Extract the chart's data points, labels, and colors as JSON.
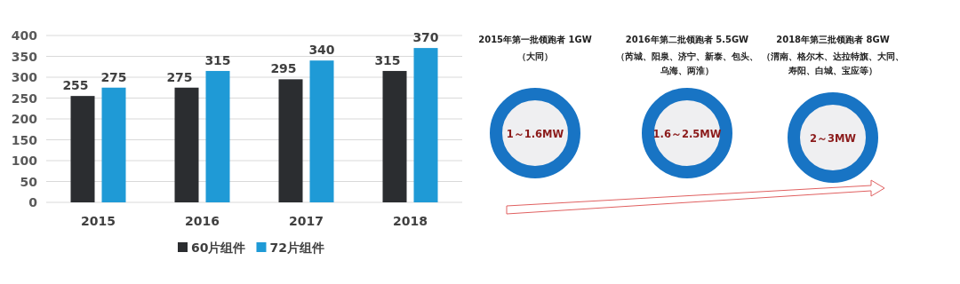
{
  "chart_data": [
    {
      "type": "bar",
      "categories": [
        "2015",
        "2016",
        "2017",
        "2018"
      ],
      "series": [
        {
          "name": "60片组件",
          "color": "#2b2d30",
          "values": [
            255,
            275,
            295,
            315
          ]
        },
        {
          "name": "72片组件",
          "color": "#1f9ad6",
          "values": [
            275,
            315,
            340,
            370
          ]
        }
      ],
      "ylim": [
        0,
        400
      ],
      "yticks": [
        0,
        50,
        100,
        150,
        200,
        250,
        300,
        350,
        400
      ],
      "grid": "y",
      "legend": "bottom",
      "data_labels": true
    },
    {
      "type": "other",
      "annotations": [
        "2015年第一批领跑者 1GW",
        "（大同）",
        "1～1.6MW",
        "2016年第二批领跑者 5.5GW",
        "（芮城、阳泉、济宁、新泰、包头、乌海、两淮）",
        "1.6～2.5MW",
        "2018年第三批领跑者 8GW",
        "（渭南、格尔木、达拉特旗、大同、寿阳、白城、宝应等）",
        "2～3MW"
      ]
    }
  ]
}
